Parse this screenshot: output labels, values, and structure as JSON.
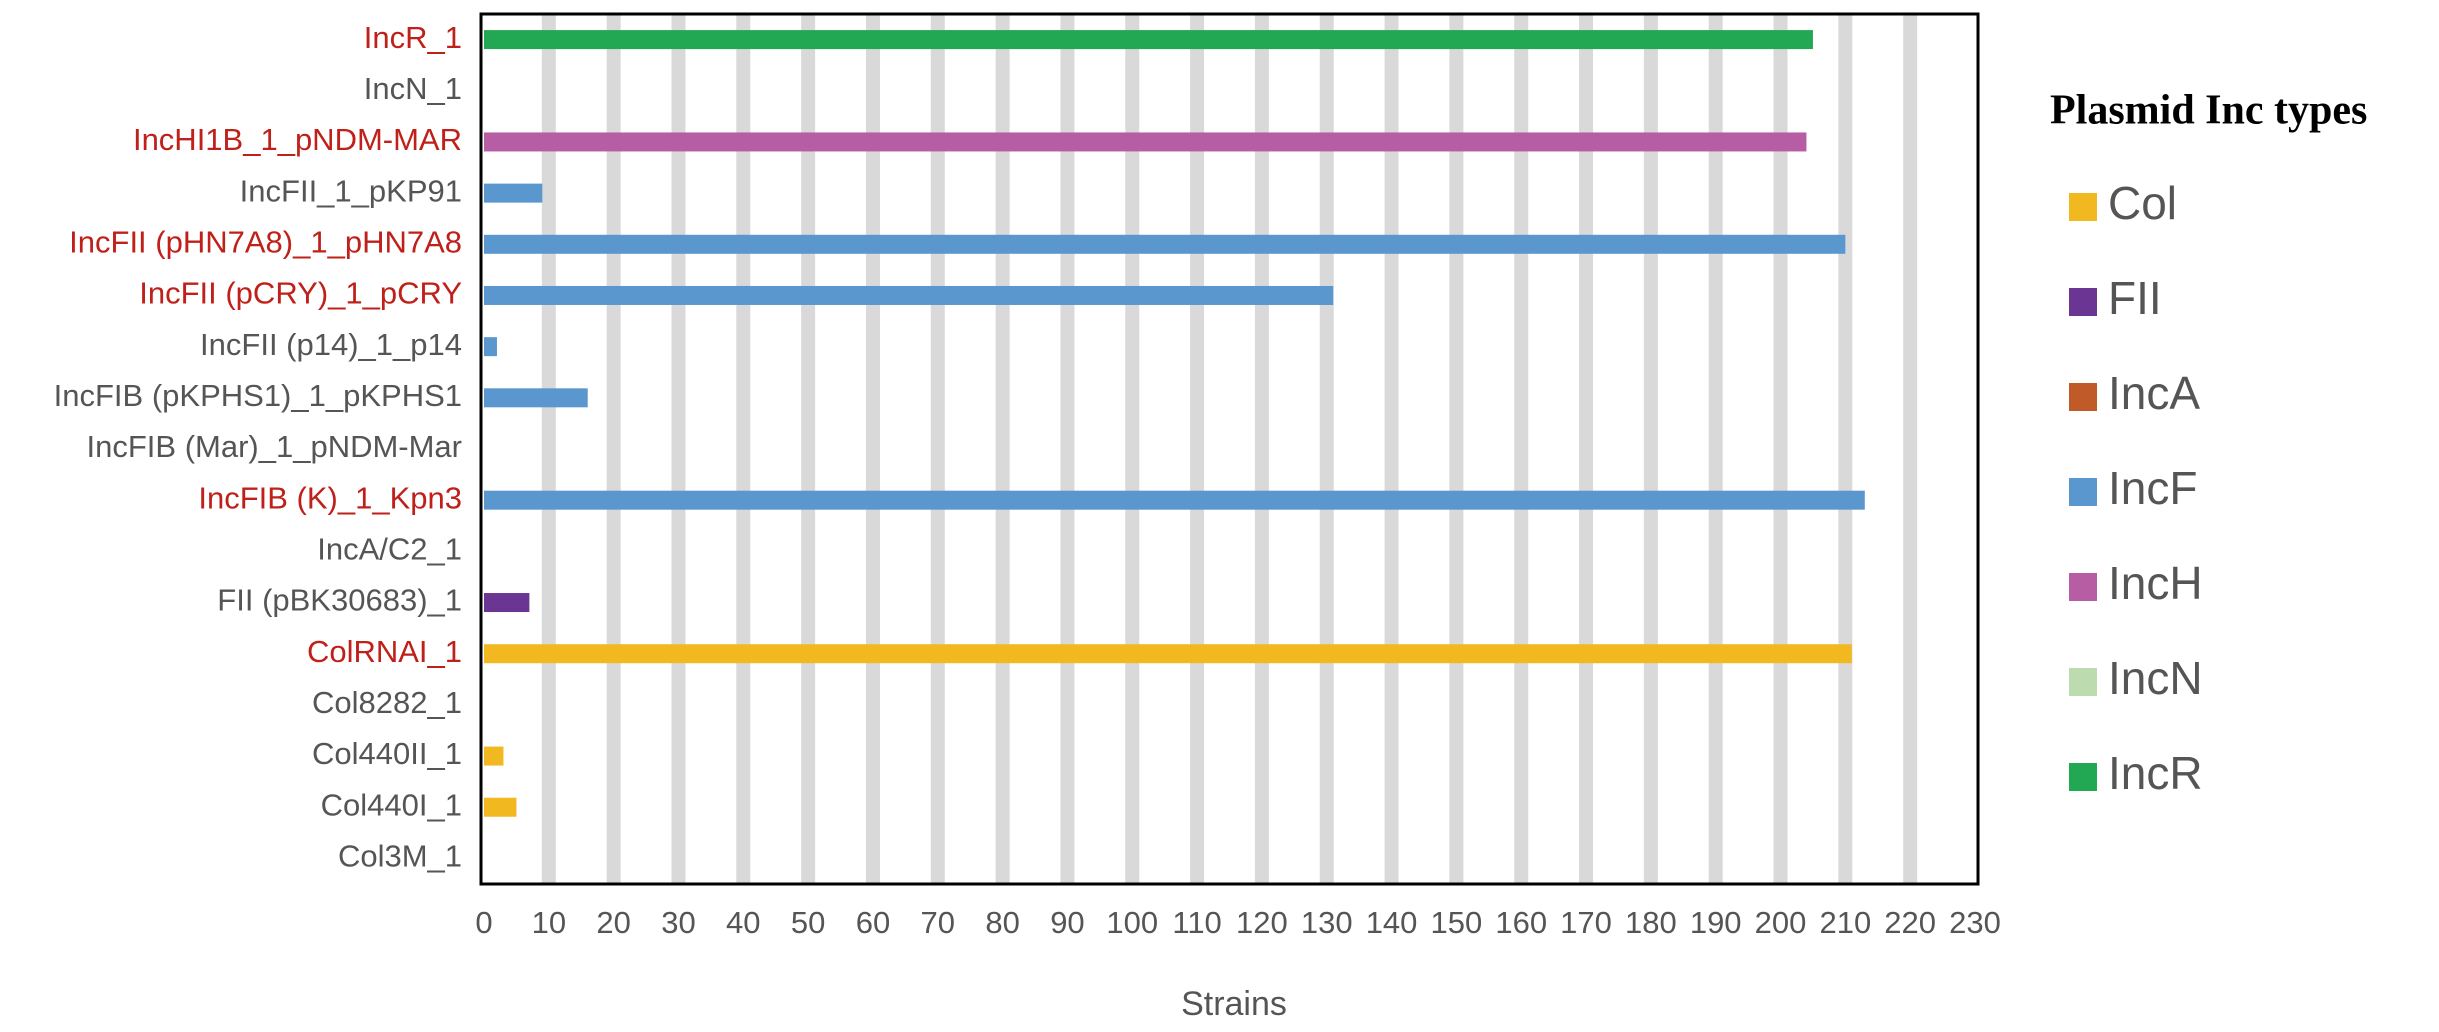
{
  "chart_data": {
    "type": "hbar",
    "categories": [
      "IncR_1",
      "IncN_1",
      "IncHI1B_1_pNDM-MAR",
      "IncFII_1_pKP91",
      "IncFII (pHN7A8)_1_pHN7A8",
      "IncFII (pCRY)_1_pCRY",
      "IncFII (p14)_1_p14",
      "IncFIB (pKPHS1)_1_pKPHS1",
      "IncFIB (Mar)_1_pNDM-Mar",
      "IncFIB (K)_1_Kpn3",
      "IncA/C2_1",
      "FII (pBK30683)_1",
      "ColRNAI_1",
      "Col8282_1",
      "Col440II_1",
      "Col440I_1",
      "Col3M_1"
    ],
    "values": [
      205,
      0,
      204,
      9,
      210,
      131,
      2,
      16,
      0,
      213,
      0,
      7,
      211,
      0,
      3,
      5,
      0
    ],
    "colors": [
      "#22a852",
      "#bcdcb0",
      "#b65da4",
      "#5b97cf",
      "#5b97cf",
      "#5b97cf",
      "#5b97cf",
      "#5b97cf",
      "#5b97cf",
      "#5b97cf",
      "#c05a28",
      "#6a3593",
      "#f2b81f",
      "#f2b81f",
      "#f2b81f",
      "#f2b81f",
      "#f2b81f"
    ],
    "label_colors": [
      "#c0201a",
      "#555555",
      "#c0201a",
      "#555555",
      "#c0201a",
      "#c0201a",
      "#555555",
      "#555555",
      "#555555",
      "#c0201a",
      "#555555",
      "#555555",
      "#c0201a",
      "#555555",
      "#555555",
      "#555555",
      "#555555"
    ],
    "xlabel": "Strains",
    "xlim": [
      0,
      230
    ],
    "xticks": [
      0,
      10,
      20,
      30,
      40,
      50,
      60,
      70,
      80,
      90,
      100,
      110,
      120,
      130,
      140,
      150,
      160,
      170,
      180,
      190,
      200,
      210,
      220,
      230
    ],
    "grid": true,
    "legend_title": "Plasmid Inc types",
    "legend": [
      {
        "name": "Col",
        "color": "#f2b81f"
      },
      {
        "name": "FII",
        "color": "#6a3593"
      },
      {
        "name": "IncA",
        "color": "#c05a28"
      },
      {
        "name": "IncF",
        "color": "#5b97cf"
      },
      {
        "name": "IncH",
        "color": "#b65da4"
      },
      {
        "name": "IncN",
        "color": "#bcdcb0"
      },
      {
        "name": "IncR",
        "color": "#22a852"
      }
    ]
  }
}
